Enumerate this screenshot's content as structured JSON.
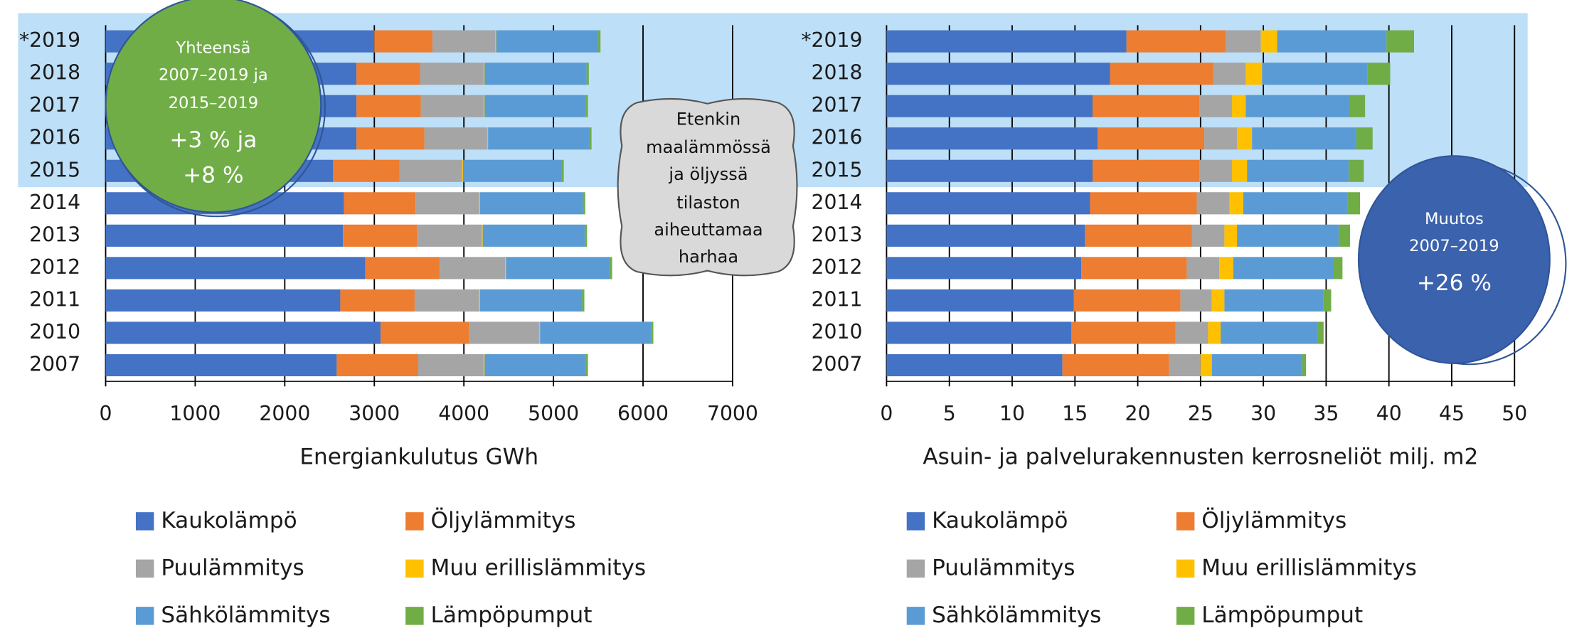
{
  "chart_data": [
    {
      "type": "bar",
      "orientation": "horizontal",
      "stacked": true,
      "categories": [
        "*2019",
        "2018",
        "2017",
        "2016",
        "2015",
        "2014",
        "2013",
        "2012",
        "2011",
        "2010",
        "2007"
      ],
      "series": [
        {
          "name": "Kaukolämpö",
          "color": "#4472c4",
          "values": [
            3000,
            2800,
            2800,
            2800,
            2540,
            2660,
            2650,
            2900,
            2620,
            3070,
            2580
          ]
        },
        {
          "name": "Öljylämmitys",
          "color": "#ed7d31",
          "values": [
            650,
            710,
            720,
            760,
            740,
            800,
            830,
            830,
            830,
            990,
            910
          ]
        },
        {
          "name": "Puulämmitys",
          "color": "#a5a5a5",
          "values": [
            700,
            710,
            700,
            700,
            700,
            710,
            720,
            730,
            720,
            780,
            730
          ]
        },
        {
          "name": "Muu erillislämmitys",
          "color": "#ffc000",
          "values": [
            10,
            10,
            10,
            10,
            10,
            10,
            10,
            10,
            10,
            10,
            10
          ]
        },
        {
          "name": "Sähkölämmitys",
          "color": "#5b9bd5",
          "values": [
            1140,
            1140,
            1130,
            1130,
            1100,
            1150,
            1140,
            1160,
            1140,
            1240,
            1130
          ]
        },
        {
          "name": "Lämpöpumput",
          "color": "#70ad47",
          "values": [
            25,
            25,
            25,
            25,
            25,
            25,
            25,
            25,
            25,
            25,
            25
          ]
        }
      ],
      "xlim": [
        0,
        7000
      ],
      "xticks": [
        0,
        1000,
        2000,
        3000,
        4000,
        5000,
        6000,
        7000
      ],
      "xlabel": "Energiankulutus GWh",
      "grid": true,
      "annotations": [
        [
          "Yhteensä",
          "2007–2019 ja",
          "2015–2019",
          "+3 % ja",
          "+8 %"
        ],
        [
          "Etenkin",
          "maalämmössä",
          "ja öljyssä",
          "tilaston",
          "aiheuttamaa",
          "harhaa"
        ]
      ]
    },
    {
      "type": "bar",
      "orientation": "horizontal",
      "stacked": true,
      "categories": [
        "*2019",
        "2018",
        "2017",
        "2016",
        "2015",
        "2014",
        "2013",
        "2012",
        "2011",
        "2010",
        "2007"
      ],
      "series": [
        {
          "name": "Kaukolämpö",
          "color": "#4472c4",
          "values": [
            19.1,
            17.8,
            16.4,
            16.8,
            16.4,
            16.2,
            15.8,
            15.5,
            14.9,
            14.7,
            14.0
          ]
        },
        {
          "name": "Öljylämmitys",
          "color": "#ed7d31",
          "values": [
            7.9,
            8.2,
            8.5,
            8.5,
            8.5,
            8.5,
            8.5,
            8.4,
            8.5,
            8.3,
            8.5
          ]
        },
        {
          "name": "Puulämmitys",
          "color": "#a5a5a5",
          "values": [
            2.8,
            2.6,
            2.6,
            2.6,
            2.6,
            2.6,
            2.6,
            2.6,
            2.5,
            2.6,
            2.5
          ]
        },
        {
          "name": "Muu erillislämmitys",
          "color": "#ffc000",
          "values": [
            1.3,
            1.3,
            1.1,
            1.2,
            1.2,
            1.1,
            1.0,
            1.1,
            1.0,
            1.0,
            0.9
          ]
        },
        {
          "name": "Sähkölämmitys",
          "color": "#5b9bd5",
          "values": [
            8.7,
            8.4,
            8.3,
            8.3,
            8.1,
            8.3,
            8.1,
            8.0,
            7.9,
            7.7,
            7.2
          ]
        },
        {
          "name": "Lämpöpumput",
          "color": "#70ad47",
          "values": [
            2.2,
            1.8,
            1.2,
            1.3,
            1.2,
            1.0,
            0.9,
            0.7,
            0.6,
            0.5,
            0.3
          ]
        }
      ],
      "xlim": [
        0,
        50
      ],
      "xticks": [
        0,
        5,
        10,
        15,
        20,
        25,
        30,
        35,
        40,
        45,
        50
      ],
      "xlabel": "Asuin- ja palvelurakennusten kerrosneliöt milj. m2",
      "grid": true,
      "annotations": [
        [
          "Muutos",
          "2007–2019",
          "+26 %"
        ]
      ]
    }
  ]
}
